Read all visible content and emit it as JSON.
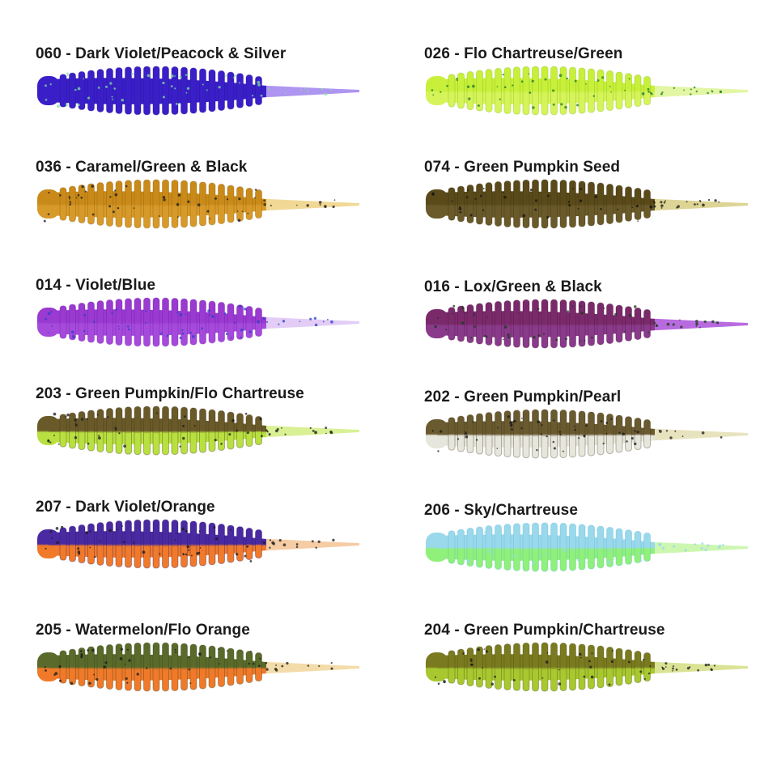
{
  "lures": [
    {
      "label": "060 - Dark Violet/Peacock & Silver",
      "colors": {
        "top": "#3a1fc8",
        "bottom": "#3a1fc8",
        "tail": "#a58af0",
        "fleck": "#7fe0a0",
        "dark": "#22108a"
      }
    },
    {
      "label": "026 - Flo Chartreuse/Green",
      "colors": {
        "top": "#c8f03a",
        "bottom": "#d6f45a",
        "tail": "#dff59a",
        "fleck": "#1f7a2a",
        "dark": "#7fb51f"
      }
    },
    {
      "label": "036 - Caramel/Green & Black",
      "colors": {
        "top": "#c98a1a",
        "bottom": "#d79a2a",
        "tail": "#f0d48a",
        "fleck": "#1a1a1a",
        "dark": "#8a5a0a"
      }
    },
    {
      "label": "074 - Green Pumpkin Seed",
      "colors": {
        "top": "#5a4a1a",
        "bottom": "#6a5a2a",
        "tail": "#d9cf8a",
        "fleck": "#141414",
        "dark": "#3a2e0e"
      }
    },
    {
      "label": "014 - Violet/Blue",
      "colors": {
        "top": "#9a3ad0",
        "bottom": "#a64adc",
        "tail": "#e0c8f6",
        "fleck": "#2a40c8",
        "dark": "#6a1ea0"
      }
    },
    {
      "label": "016 - Lox/Green & Black",
      "colors": {
        "top": "#7a2a6a",
        "bottom": "#8a3a8a",
        "tail": "#b05adc",
        "fleck": "#1a3a1a",
        "dark": "#4a1440"
      }
    },
    {
      "label": "203 - Green Pumpkin/Flo Chartreuse",
      "colors": {
        "top": "#6a5a2a",
        "bottom": "#b8e040",
        "tail": "#d6ee8a",
        "fleck": "#1a1a1a",
        "dark": "#3e3414"
      }
    },
    {
      "label": "202 - Green Pumpkin/Pearl",
      "colors": {
        "top": "#6a5a30",
        "bottom": "#e6e6dc",
        "tail": "#e6e0b8",
        "fleck": "#1a1a1a",
        "dark": "#3e3418"
      }
    },
    {
      "label": "207 - Dark Violet/Orange",
      "colors": {
        "top": "#4a2aa0",
        "bottom": "#f07a2a",
        "tail": "#f5c79a",
        "fleck": "#1a1a1a",
        "dark": "#2a1470"
      }
    },
    {
      "label": "206 - Sky/Chartreuse",
      "colors": {
        "top": "#9ad8ec",
        "bottom": "#8ff07a",
        "tail": "#c8f6a8",
        "fleck": "#9ad8ec",
        "dark": "#5ab8d0"
      }
    },
    {
      "label": "205 - Watermelon/Flo Orange",
      "colors": {
        "top": "#5a6a2a",
        "bottom": "#f07a2a",
        "tail": "#f2d8a0",
        "fleck": "#1a1a1a",
        "dark": "#34401a"
      }
    },
    {
      "label": "204 - Green Pumpkin/Chartreuse",
      "colors": {
        "top": "#7a7a20",
        "bottom": "#a8c830",
        "tail": "#d6e08a",
        "fleck": "#1a1a1a",
        "dark": "#4a4a10"
      }
    }
  ]
}
